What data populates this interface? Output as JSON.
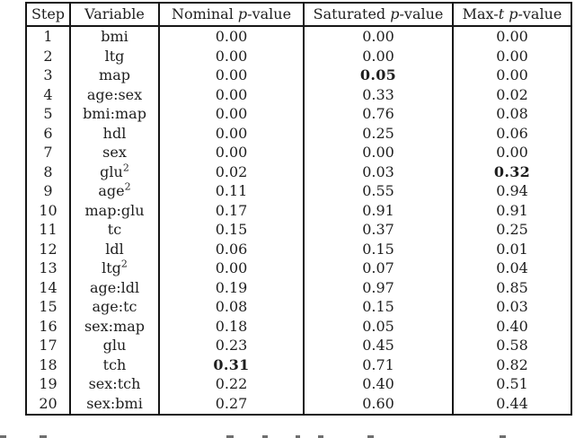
{
  "table": {
    "headers": [
      {
        "label": "Step"
      },
      {
        "label": "Variable"
      },
      {
        "label": "Nominal *p*-value"
      },
      {
        "label": "Saturated *p*-value"
      },
      {
        "label": "Max-*t* *p*-value"
      }
    ],
    "rows": [
      {
        "step": "1",
        "variable": "bmi",
        "nominal": "0.00",
        "saturated": "0.00",
        "maxt": "0.00",
        "bold": ""
      },
      {
        "step": "2",
        "variable": "ltg",
        "nominal": "0.00",
        "saturated": "0.00",
        "maxt": "0.00",
        "bold": ""
      },
      {
        "step": "3",
        "variable": "map",
        "nominal": "0.00",
        "saturated": "0.05",
        "maxt": "0.00",
        "bold": "saturated"
      },
      {
        "step": "4",
        "variable": "age:sex",
        "nominal": "0.00",
        "saturated": "0.33",
        "maxt": "0.02",
        "bold": ""
      },
      {
        "step": "5",
        "variable": "bmi:map",
        "nominal": "0.00",
        "saturated": "0.76",
        "maxt": "0.08",
        "bold": ""
      },
      {
        "step": "6",
        "variable": "hdl",
        "nominal": "0.00",
        "saturated": "0.25",
        "maxt": "0.06",
        "bold": ""
      },
      {
        "step": "7",
        "variable": "sex",
        "nominal": "0.00",
        "saturated": "0.00",
        "maxt": "0.00",
        "bold": ""
      },
      {
        "step": "8",
        "variable": "glu^2",
        "nominal": "0.02",
        "saturated": "0.03",
        "maxt": "0.32",
        "bold": "maxt"
      },
      {
        "step": "9",
        "variable": "age^2",
        "nominal": "0.11",
        "saturated": "0.55",
        "maxt": "0.94",
        "bold": ""
      },
      {
        "step": "10",
        "variable": "map:glu",
        "nominal": "0.17",
        "saturated": "0.91",
        "maxt": "0.91",
        "bold": ""
      },
      {
        "step": "11",
        "variable": "tc",
        "nominal": "0.15",
        "saturated": "0.37",
        "maxt": "0.25",
        "bold": ""
      },
      {
        "step": "12",
        "variable": "ldl",
        "nominal": "0.06",
        "saturated": "0.15",
        "maxt": "0.01",
        "bold": ""
      },
      {
        "step": "13",
        "variable": "ltg^2",
        "nominal": "0.00",
        "saturated": "0.07",
        "maxt": "0.04",
        "bold": ""
      },
      {
        "step": "14",
        "variable": "age:ldl",
        "nominal": "0.19",
        "saturated": "0.97",
        "maxt": "0.85",
        "bold": ""
      },
      {
        "step": "15",
        "variable": "age:tc",
        "nominal": "0.08",
        "saturated": "0.15",
        "maxt": "0.03",
        "bold": ""
      },
      {
        "step": "16",
        "variable": "sex:map",
        "nominal": "0.18",
        "saturated": "0.05",
        "maxt": "0.40",
        "bold": ""
      },
      {
        "step": "17",
        "variable": "glu",
        "nominal": "0.23",
        "saturated": "0.45",
        "maxt": "0.58",
        "bold": ""
      },
      {
        "step": "18",
        "variable": "tch",
        "nominal": "0.31",
        "saturated": "0.71",
        "maxt": "0.82",
        "bold": "nominal"
      },
      {
        "step": "19",
        "variable": "sex:tch",
        "nominal": "0.22",
        "saturated": "0.40",
        "maxt": "0.51",
        "bold": ""
      },
      {
        "step": "20",
        "variable": "sex:bmi",
        "nominal": "0.27",
        "saturated": "0.60",
        "maxt": "0.44",
        "bold": ""
      }
    ]
  },
  "colors": {
    "border": "#161616",
    "text": "#1e1e1e",
    "background": "#ffffff"
  }
}
